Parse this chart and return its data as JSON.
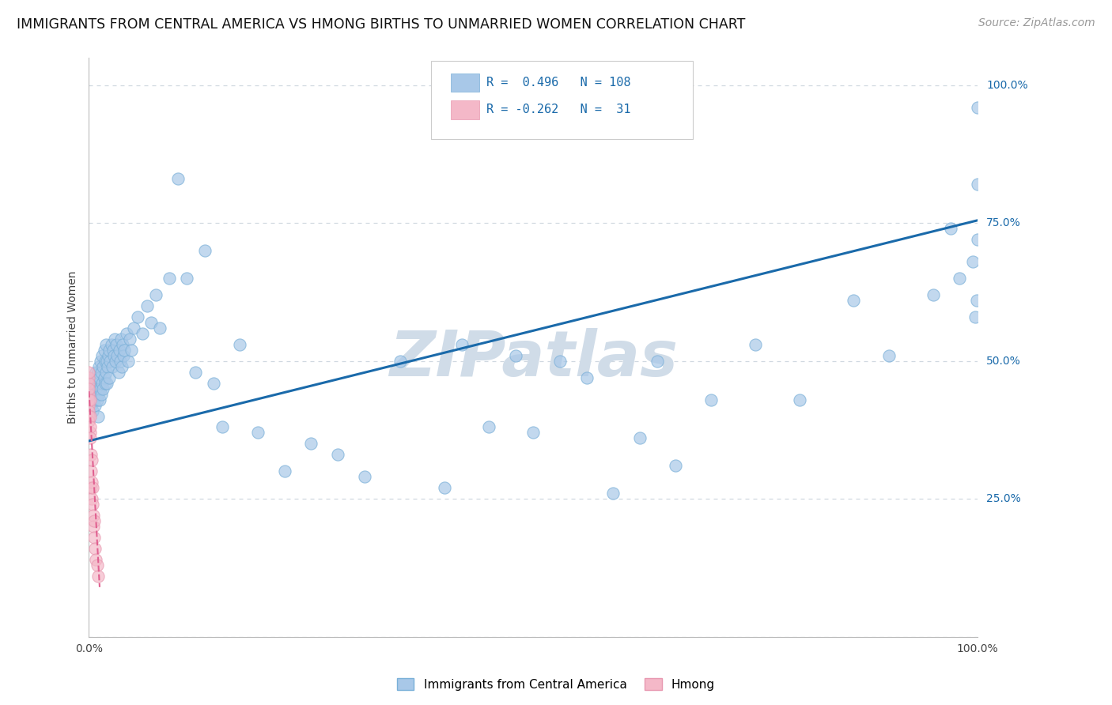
{
  "title": "IMMIGRANTS FROM CENTRAL AMERICA VS HMONG BIRTHS TO UNMARRIED WOMEN CORRELATION CHART",
  "source": "Source: ZipAtlas.com",
  "ylabel": "Births to Unmarried Women",
  "legend_label_blue": "Immigrants from Central America",
  "legend_label_pink": "Hmong",
  "legend_R_blue": "0.496",
  "legend_N_blue": "108",
  "legend_R_pink": "-0.262",
  "legend_N_pink": "31",
  "watermark": "ZIPatlas",
  "blue_scatter_x": [
    0.002,
    0.003,
    0.004,
    0.004,
    0.005,
    0.005,
    0.006,
    0.006,
    0.007,
    0.007,
    0.008,
    0.008,
    0.009,
    0.009,
    0.01,
    0.01,
    0.01,
    0.011,
    0.011,
    0.012,
    0.012,
    0.013,
    0.013,
    0.014,
    0.014,
    0.015,
    0.015,
    0.016,
    0.016,
    0.017,
    0.017,
    0.018,
    0.018,
    0.019,
    0.019,
    0.02,
    0.02,
    0.021,
    0.022,
    0.023,
    0.023,
    0.024,
    0.025,
    0.026,
    0.027,
    0.028,
    0.029,
    0.03,
    0.031,
    0.032,
    0.033,
    0.034,
    0.035,
    0.036,
    0.037,
    0.038,
    0.039,
    0.04,
    0.042,
    0.044,
    0.046,
    0.048,
    0.05,
    0.055,
    0.06,
    0.065,
    0.07,
    0.075,
    0.08,
    0.09,
    0.1,
    0.11,
    0.12,
    0.13,
    0.14,
    0.15,
    0.17,
    0.19,
    0.22,
    0.25,
    0.28,
    0.31,
    0.35,
    0.4,
    0.42,
    0.45,
    0.48,
    0.5,
    0.53,
    0.56,
    0.59,
    0.62,
    0.64,
    0.66,
    0.7,
    0.75,
    0.8,
    0.86,
    0.9,
    0.95,
    0.97,
    0.98,
    0.995,
    0.997,
    0.999,
    1.0,
    1.0,
    1.0
  ],
  "blue_scatter_y": [
    0.42,
    0.44,
    0.41,
    0.45,
    0.43,
    0.46,
    0.44,
    0.47,
    0.42,
    0.46,
    0.45,
    0.48,
    0.43,
    0.47,
    0.4,
    0.44,
    0.48,
    0.45,
    0.49,
    0.43,
    0.47,
    0.45,
    0.5,
    0.44,
    0.48,
    0.46,
    0.51,
    0.45,
    0.49,
    0.47,
    0.52,
    0.46,
    0.5,
    0.48,
    0.53,
    0.46,
    0.5,
    0.49,
    0.51,
    0.47,
    0.52,
    0.5,
    0.53,
    0.49,
    0.52,
    0.51,
    0.54,
    0.5,
    0.53,
    0.51,
    0.48,
    0.52,
    0.5,
    0.54,
    0.49,
    0.53,
    0.51,
    0.52,
    0.55,
    0.5,
    0.54,
    0.52,
    0.56,
    0.58,
    0.55,
    0.6,
    0.57,
    0.62,
    0.56,
    0.65,
    0.83,
    0.65,
    0.48,
    0.7,
    0.46,
    0.38,
    0.53,
    0.37,
    0.3,
    0.35,
    0.33,
    0.29,
    0.5,
    0.27,
    0.53,
    0.38,
    0.51,
    0.37,
    0.5,
    0.47,
    0.26,
    0.36,
    0.5,
    0.31,
    0.43,
    0.53,
    0.43,
    0.61,
    0.51,
    0.62,
    0.74,
    0.65,
    0.68,
    0.58,
    0.61,
    0.72,
    0.82,
    0.96
  ],
  "pink_scatter_x": [
    0.0,
    0.0,
    0.0,
    0.0,
    0.0,
    0.0,
    0.0,
    0.0,
    0.0,
    0.0,
    0.001,
    0.001,
    0.001,
    0.001,
    0.001,
    0.002,
    0.002,
    0.002,
    0.003,
    0.003,
    0.003,
    0.004,
    0.004,
    0.005,
    0.005,
    0.006,
    0.006,
    0.007,
    0.008,
    0.009,
    0.01
  ],
  "pink_scatter_y": [
    0.44,
    0.42,
    0.47,
    0.46,
    0.43,
    0.41,
    0.45,
    0.48,
    0.4,
    0.39,
    0.37,
    0.4,
    0.43,
    0.38,
    0.36,
    0.27,
    0.3,
    0.33,
    0.28,
    0.32,
    0.25,
    0.24,
    0.27,
    0.22,
    0.2,
    0.18,
    0.21,
    0.16,
    0.14,
    0.13,
    0.11
  ],
  "blue_line_x": [
    0.0,
    1.0
  ],
  "blue_line_y": [
    0.355,
    0.755
  ],
  "pink_line_x": [
    0.0,
    0.012
  ],
  "pink_line_y": [
    0.445,
    0.09
  ],
  "xlim": [
    0.0,
    1.0
  ],
  "ylim": [
    0.0,
    1.05
  ],
  "blue_color": "#a8c8e8",
  "pink_color": "#f4b8c8",
  "blue_scatter_edge": "#7ab0d8",
  "pink_scatter_edge": "#e898b0",
  "blue_line_color": "#1a6aaa",
  "pink_line_color": "#e06090",
  "legend_text_color": "#1a6aaa",
  "grid_color": "#d0d8e0",
  "background_color": "#ffffff",
  "watermark_color": "#d0dce8",
  "title_fontsize": 12.5,
  "source_fontsize": 10,
  "axis_label_fontsize": 10,
  "tick_fontsize": 10,
  "legend_fontsize": 11,
  "scatter_size": 120
}
